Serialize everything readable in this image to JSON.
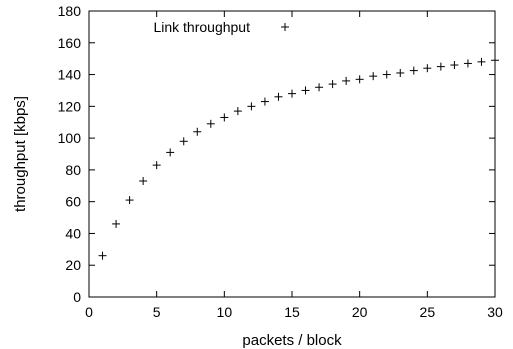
{
  "chart_data": {
    "type": "scatter",
    "xlabel": "packets / block",
    "ylabel": "throughput [kbps]",
    "xlim": [
      0,
      30
    ],
    "ylim": [
      0,
      180
    ],
    "xticks": [
      0,
      5,
      10,
      15,
      20,
      25,
      30
    ],
    "yticks": [
      0,
      20,
      40,
      60,
      80,
      100,
      120,
      140,
      160,
      180
    ],
    "grid": false,
    "legend_position": "top-center",
    "marker": "plus",
    "series": [
      {
        "name": "Link throughput",
        "x": [
          1,
          2,
          3,
          4,
          5,
          6,
          7,
          8,
          9,
          10,
          11,
          12,
          13,
          14,
          15,
          16,
          17,
          18,
          19,
          20,
          21,
          22,
          23,
          24,
          25,
          26,
          27,
          28,
          29,
          30
        ],
        "y": [
          26,
          46,
          61,
          73,
          83,
          91,
          98,
          104,
          109,
          113,
          117,
          120,
          123,
          126,
          128,
          130,
          132,
          134,
          136,
          137,
          139,
          140,
          141,
          142.5,
          144,
          145,
          146,
          147,
          148,
          149
        ]
      }
    ]
  }
}
